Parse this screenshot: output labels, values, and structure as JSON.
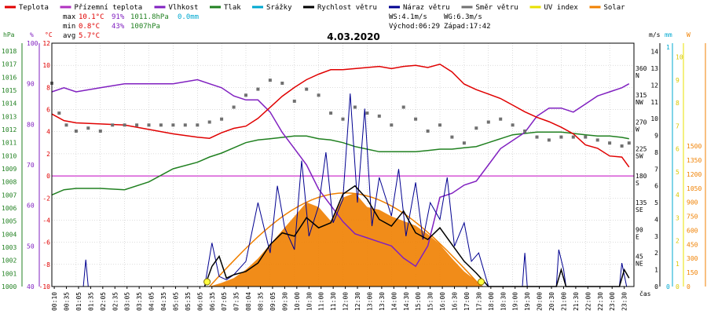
{
  "legend": [
    {
      "label": "Teplota",
      "color": "#e00000"
    },
    {
      "label": "Přízemní teplota",
      "color": "#b030c0"
    },
    {
      "label": "Vlhkost",
      "color": "#8020c0"
    },
    {
      "label": "Tlak",
      "color": "#208020"
    },
    {
      "label": "Srážky",
      "color": "#00a8d0"
    },
    {
      "label": "Rychlost větru",
      "color": "#000000"
    },
    {
      "label": "Náraz větru",
      "color": "#000090"
    },
    {
      "label": "Směr větru",
      "color": "#707070"
    },
    {
      "label": "UV index",
      "color": "#e8e000"
    },
    {
      "label": "Solar",
      "color": "#f08000"
    }
  ],
  "stats": {
    "max_label": "max",
    "max_temp": "10.1°C",
    "max_hum": "91%",
    "max_press": "1011.8hPa",
    "max_rain": "0.0mm",
    "min_label": "min",
    "min_temp": "0.8°C",
    "min_hum": "43%",
    "min_press": "1007hPa",
    "avg_label": "avg",
    "avg_temp": "5.7°C"
  },
  "info": {
    "ws": "WS:4.1m/s",
    "wg": "WG:6.3m/s",
    "sunrise": "Východ:06:29",
    "sunset": "Západ:17:42"
  },
  "date": "4.03.2020",
  "axis_units": {
    "hpa": "hPa",
    "pct": "%",
    "degc": "°C",
    "ms": "m/s",
    "mm": "mm",
    "w": "W",
    "time": "čas"
  },
  "colors": {
    "border": "#000000",
    "grid": "#bbbbbb",
    "zero_line": "#c000c0"
  },
  "chart_data": {
    "type": "line",
    "x_tick_labels": [
      "00:10",
      "00:35",
      "01:05",
      "01:35",
      "02:05",
      "02:35",
      "03:05",
      "03:35",
      "04:05",
      "04:35",
      "05:05",
      "05:35",
      "06:05",
      "06:35",
      "07:05",
      "07:35",
      "08:04",
      "08:35",
      "09:05",
      "09:30",
      "10:00",
      "10:30",
      "11:00",
      "11:30",
      "12:00",
      "12:30",
      "13:00",
      "13:30",
      "14:00",
      "14:30",
      "15:00",
      "15:30",
      "16:00",
      "16:30",
      "17:00",
      "17:30",
      "18:00",
      "18:30",
      "19:00",
      "19:30",
      "20:00",
      "20:30",
      "21:00",
      "21:30",
      "22:00",
      "22:30",
      "23:00",
      "23:30"
    ],
    "axes": {
      "pressure_hpa": {
        "ticks": [
          1000,
          1001,
          1002,
          1003,
          1004,
          1005,
          1006,
          1007,
          1008,
          1009,
          1010,
          1011,
          1012,
          1013,
          1014,
          1015,
          1016,
          1017,
          1018
        ]
      },
      "humidity_pct": {
        "ticks": [
          40,
          50,
          60,
          70,
          80,
          90,
          100
        ]
      },
      "temperature_c": {
        "ticks": [
          -10,
          -8,
          -6,
          -4,
          -2,
          0,
          2,
          4,
          6,
          8,
          10,
          12
        ],
        "ylim": [
          -10,
          12
        ]
      },
      "wind_direction": {
        "ticks": [
          "NE",
          "E",
          "SE",
          "S",
          "SW",
          "W",
          "NW",
          "N"
        ],
        "degrees": [
          45,
          90,
          135,
          180,
          225,
          270,
          315,
          360
        ]
      },
      "wind_ms": {
        "ticks": [
          0,
          1,
          2,
          3,
          4,
          5,
          6,
          7,
          8,
          9,
          10,
          11,
          12,
          13,
          14
        ],
        "ylim": [
          0,
          14.5
        ]
      },
      "rain_mm": {
        "ticks": [
          0,
          1
        ],
        "ylim": [
          0,
          1
        ]
      },
      "uv": {
        "ticks": [
          0,
          1,
          2,
          3,
          4,
          5,
          6,
          7,
          8,
          9,
          10
        ],
        "ylim": [
          0,
          10
        ]
      },
      "solar_w": {
        "ticks": [
          0,
          150,
          300,
          450,
          600,
          750,
          900,
          1050,
          1200,
          1350,
          1500
        ],
        "ylim": [
          0,
          1500
        ]
      }
    },
    "series": [
      {
        "name": "Teplota",
        "color": "#e00000",
        "hours": [
          0,
          0.5,
          1,
          2,
          3,
          4,
          5,
          6,
          6.5,
          7,
          7.5,
          8,
          8.5,
          9,
          9.5,
          10,
          10.5,
          11,
          11.5,
          12,
          12.5,
          13,
          13.5,
          14,
          14.5,
          15,
          15.5,
          16,
          16.5,
          17,
          17.5,
          18,
          18.5,
          19,
          19.5,
          20,
          20.5,
          21,
          21.5,
          22,
          22.5,
          23,
          23.5,
          23.8
        ],
        "values": [
          5.6,
          5,
          4.8,
          4.7,
          4.6,
          4.2,
          3.8,
          3.5,
          3.4,
          3.9,
          4.3,
          4.5,
          5.2,
          6.2,
          7.2,
          8,
          8.7,
          9.2,
          9.6,
          9.6,
          9.7,
          9.8,
          9.9,
          9.7,
          9.9,
          10,
          9.8,
          10.1,
          9.4,
          8.3,
          7.8,
          7.4,
          7,
          6.4,
          5.8,
          5.3,
          4.9,
          4.4,
          3.8,
          2.8,
          2.5,
          1.8,
          1.7,
          0.8
        ]
      },
      {
        "name": "Vlhkost",
        "color": "#8020c0",
        "hours": [
          0,
          0.5,
          1,
          2,
          3,
          4,
          5,
          6,
          6.5,
          7,
          7.5,
          8,
          8.5,
          9,
          9.5,
          10,
          10.5,
          11,
          11.5,
          12,
          12.5,
          13,
          13.5,
          14,
          14.5,
          15,
          15.5,
          16,
          16.5,
          17,
          17.5,
          18,
          18.5,
          19,
          19.5,
          20,
          20.5,
          21,
          21.5,
          22,
          22.5,
          23,
          23.5,
          23.8
        ],
        "values": [
          88,
          89,
          88,
          89,
          90,
          90,
          90,
          91,
          90,
          89,
          87,
          86,
          86,
          83,
          78,
          74,
          70,
          64,
          60,
          56,
          53,
          52,
          51,
          50,
          47,
          45,
          50,
          62,
          63,
          65,
          66,
          70,
          74,
          76,
          78,
          82,
          84,
          84,
          83,
          85,
          87,
          88,
          89,
          90
        ]
      },
      {
        "name": "Tlak",
        "color": "#208020",
        "hours": [
          0,
          0.5,
          1,
          2,
          3,
          4,
          5,
          6,
          6.5,
          7,
          7.5,
          8,
          8.5,
          9,
          9.5,
          10,
          10.5,
          11,
          11.5,
          12,
          12.5,
          13,
          13.5,
          14,
          14.5,
          15,
          15.5,
          16,
          16.5,
          17,
          17.5,
          18,
          18.5,
          19,
          19.5,
          20,
          20.5,
          21,
          21.5,
          22,
          22.5,
          23,
          23.5,
          23.8
        ],
        "values": [
          1007,
          1007.4,
          1007.5,
          1007.5,
          1007.4,
          1008,
          1009,
          1009.5,
          1009.9,
          1010.2,
          1010.6,
          1011,
          1011.2,
          1011.3,
          1011.4,
          1011.5,
          1011.5,
          1011.3,
          1011.2,
          1011.0,
          1010.7,
          1010.5,
          1010.3,
          1010.3,
          1010.3,
          1010.3,
          1010.4,
          1010.5,
          1010.5,
          1010.6,
          1010.7,
          1011.0,
          1011.3,
          1011.6,
          1011.7,
          1011.8,
          1011.8,
          1011.8,
          1011.7,
          1011.6,
          1011.5,
          1011.5,
          1011.4,
          1011.3
        ]
      },
      {
        "name": "Rychlost větru",
        "color": "#000000",
        "hours": [
          6.3,
          6.6,
          6.9,
          7.2,
          7.5,
          8,
          8.5,
          9,
          9.5,
          10,
          10.5,
          11,
          11.5,
          12,
          12.5,
          13,
          13.5,
          14,
          14.5,
          15,
          15.5,
          16,
          16.5,
          17,
          17.5,
          18,
          20.8,
          21.0,
          21.2,
          23.4,
          23.6,
          23.8
        ],
        "values": [
          0,
          1.2,
          1.8,
          0.5,
          0.7,
          0.9,
          1.4,
          2.5,
          3.2,
          3.0,
          4.1,
          3.5,
          3.8,
          5.5,
          6.0,
          5.2,
          4.0,
          3.6,
          4.5,
          3.2,
          2.8,
          3.5,
          2.5,
          1.5,
          0.8,
          0,
          0,
          1,
          0,
          0,
          1,
          0.5
        ]
      },
      {
        "name": "Náraz větru",
        "color": "#000090",
        "hours": [
          1.3,
          1.4,
          1.5,
          6.3,
          6.6,
          6.9,
          7.2,
          7.5,
          8,
          8.5,
          9,
          9.3,
          9.6,
          10,
          10.3,
          10.6,
          11,
          11.3,
          11.6,
          12,
          12.3,
          12.6,
          12.9,
          13.2,
          13.5,
          14,
          14.3,
          14.6,
          15,
          15.3,
          15.6,
          16,
          16.3,
          16.6,
          17,
          17.3,
          17.6,
          18,
          19.4,
          19.5,
          19.6,
          20.8,
          20.9,
          21.1,
          21.2,
          23.4,
          23.5,
          23.7
        ],
        "values": [
          0,
          1.6,
          0,
          0,
          2.6,
          0.6,
          0.4,
          0.7,
          1.5,
          5.0,
          2.0,
          6.0,
          3.5,
          2.2,
          7.5,
          3.0,
          4.8,
          8.0,
          3.8,
          5.2,
          11.5,
          5.0,
          10.6,
          3.6,
          6.5,
          4.2,
          7.0,
          3.0,
          6.2,
          2.8,
          5.0,
          4.0,
          6.5,
          2.4,
          3.8,
          1.5,
          2.0,
          0,
          0,
          2.0,
          0,
          0,
          2.2,
          1.0,
          0,
          0,
          1.4,
          0
        ]
      },
      {
        "name": "Směr větru",
        "color": "#707070",
        "hours": [
          0,
          0.3,
          0.6,
          1,
          1.5,
          2,
          2.5,
          3,
          3.5,
          4,
          4.5,
          5,
          5.5,
          6,
          6.5,
          7,
          7.5,
          8,
          8.5,
          9,
          9.5,
          10,
          10.5,
          11,
          11.5,
          12,
          12.5,
          13,
          13.5,
          14,
          14.5,
          15,
          15.5,
          16,
          16.5,
          17,
          17.5,
          18,
          18.5,
          19,
          19.5,
          20,
          20.5,
          21,
          21.5,
          22,
          22.5,
          23,
          23.5,
          23.8
        ],
        "values": [
          340,
          290,
          270,
          260,
          265,
          260,
          270,
          270,
          270,
          270,
          270,
          270,
          270,
          270,
          275,
          280,
          300,
          320,
          330,
          345,
          340,
          310,
          330,
          320,
          290,
          280,
          300,
          290,
          285,
          270,
          300,
          280,
          260,
          270,
          250,
          240,
          265,
          275,
          280,
          270,
          260,
          250,
          245,
          250,
          250,
          250,
          245,
          240,
          235,
          240
        ]
      },
      {
        "name": "Solar",
        "color": "#f08000",
        "hours": [
          6.5,
          7,
          7.5,
          8,
          8.5,
          9,
          9.5,
          10,
          10.5,
          11,
          11.5,
          12,
          12.5,
          13,
          13.5,
          14,
          14.5,
          15,
          15.5,
          16,
          16.5,
          17,
          17.5,
          17.8
        ],
        "values": [
          0,
          40,
          90,
          180,
          300,
          450,
          600,
          750,
          900,
          850,
          700,
          950,
          1000,
          850,
          820,
          750,
          700,
          650,
          560,
          450,
          300,
          160,
          60,
          0
        ]
      },
      {
        "name": "UV index",
        "color": "#e8e000",
        "hours": [
          6.4,
          12.1,
          17.7
        ],
        "values": [
          0,
          0,
          0
        ]
      }
    ]
  }
}
